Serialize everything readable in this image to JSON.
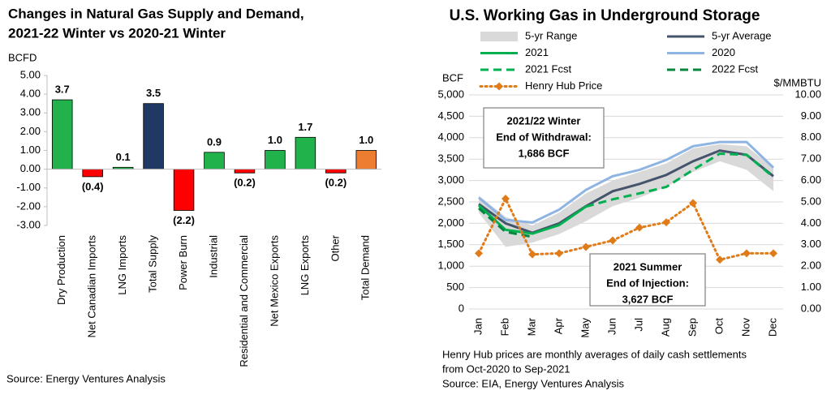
{
  "chart_data": [
    {
      "type": "bar",
      "title": [
        "Changes in Natural Gas Supply and Demand,",
        "2021-22 Winter vs 2020-21 Winter"
      ],
      "y_label": "BCFD",
      "categories": [
        "Dry Production",
        "Net Canadian Imports",
        "LNG Imports",
        "Total Supply",
        "Power Burn",
        "Industrial",
        "Residential and Commercial",
        "Net Mexico Exports",
        "LNG Exports",
        "Other",
        "Total Demand"
      ],
      "values": [
        3.7,
        -0.4,
        0.1,
        3.5,
        -2.2,
        0.9,
        -0.2,
        1.0,
        1.7,
        -0.2,
        1.0
      ],
      "value_labels": [
        "3.7",
        "(0.4)",
        "0.1",
        "3.5",
        "(2.2)",
        "0.9",
        "(0.2)",
        "1.0",
        "1.7",
        "(0.2)",
        "1.0"
      ],
      "colors": [
        "#22b24c",
        "#ff0000",
        "#22b24c",
        "#1f3864",
        "#ff0000",
        "#22b24c",
        "#ff0000",
        "#22b24c",
        "#22b24c",
        "#ff0000",
        "#ed7d31"
      ],
      "negative_label_color": "#ff0000",
      "ylim": [
        -3,
        5
      ],
      "yticks": [
        {
          "value": 5,
          "label": "5.00"
        },
        {
          "value": 4,
          "label": "4.00"
        },
        {
          "value": 3,
          "label": "3.00"
        },
        {
          "value": 2,
          "label": "2.00"
        },
        {
          "value": 1,
          "label": "1.00"
        },
        {
          "value": 0,
          "label": "0.00"
        },
        {
          "value": -1,
          "label": "-1.00"
        },
        {
          "value": -2,
          "label": "-2.00"
        },
        {
          "value": -3,
          "label": "-3.00"
        }
      ],
      "grid": false,
      "source": "Source: Energy Ventures Analysis"
    },
    {
      "type": "line",
      "title": "U.S. Working Gas in Underground Storage",
      "y_label": "BCF",
      "y2_label": "$/MMBTU",
      "categories": [
        "Jan",
        "Feb",
        "Mar",
        "Apr",
        "May",
        "Jun",
        "Jul",
        "Aug",
        "Sep",
        "Oct",
        "Nov",
        "Dec"
      ],
      "series": [
        {
          "name": "5-yr Range",
          "color": "#d9d9d9",
          "kind": "range",
          "low": [
            2250,
            1450,
            1550,
            1750,
            2050,
            2400,
            2600,
            2850,
            3200,
            3450,
            3250,
            2750
          ],
          "high": [
            2650,
            2150,
            1950,
            2250,
            2700,
            3000,
            3200,
            3400,
            3750,
            3850,
            3800,
            3300
          ]
        },
        {
          "name": "5-yr Average",
          "color": "#44546a",
          "dash": "solid",
          "values": [
            2450,
            2000,
            1780,
            2000,
            2400,
            2750,
            2920,
            3130,
            3450,
            3700,
            3600,
            3100
          ]
        },
        {
          "name": "2021",
          "color": "#00b050",
          "dash": "solid",
          "values": [
            2420,
            1850,
            1760,
            1960,
            2390,
            null,
            null,
            null,
            null,
            null,
            null,
            null
          ]
        },
        {
          "name": "2020",
          "color": "#8eb4e3",
          "dash": "solid",
          "values": [
            2600,
            2080,
            2020,
            2320,
            2780,
            3100,
            3250,
            3480,
            3800,
            3900,
            3900,
            3300
          ]
        },
        {
          "name": "2021 Fcst",
          "color": "#00b050",
          "dash": "dashed",
          "values": [
            null,
            null,
            null,
            null,
            2390,
            2560,
            2700,
            2850,
            3250,
            3627,
            3600,
            3080
          ]
        },
        {
          "name": "2022 Fcst",
          "color": "#00863d",
          "dash": "dashed",
          "values": [
            2350,
            1800,
            1686,
            null,
            null,
            null,
            null,
            null,
            null,
            null,
            null,
            null
          ]
        },
        {
          "name": "Henry Hub Price",
          "color": "#e07b1a",
          "dash": "dotted",
          "marker": "diamond",
          "axis": "y2",
          "values": [
            2.6,
            5.15,
            2.55,
            2.6,
            2.9,
            3.2,
            3.8,
            4.05,
            4.95,
            2.3,
            2.6,
            2.6
          ]
        }
      ],
      "ylim": [
        0,
        5000
      ],
      "yticks": [
        {
          "value": 5000,
          "label": "5,000"
        },
        {
          "value": 4500,
          "label": "4,500"
        },
        {
          "value": 4000,
          "label": "4,000"
        },
        {
          "value": 3500,
          "label": "3,500"
        },
        {
          "value": 3000,
          "label": "3,000"
        },
        {
          "value": 2500,
          "label": "2,500"
        },
        {
          "value": 2000,
          "label": "2,000"
        },
        {
          "value": 1500,
          "label": "1,500"
        },
        {
          "value": 1000,
          "label": "1,000"
        },
        500,
        0
      ],
      "y2lim": [
        0,
        10
      ],
      "y2ticks": [
        {
          "value": 10,
          "label": "10.00"
        },
        {
          "value": 9,
          "label": "9.00"
        },
        {
          "value": 8,
          "label": "8.00"
        },
        {
          "value": 7,
          "label": "7.00"
        },
        {
          "value": 6,
          "label": "6.00"
        },
        {
          "value": 5,
          "label": "5.00"
        },
        {
          "value": 4,
          "label": "4.00"
        },
        {
          "value": 3,
          "label": "3.00"
        },
        {
          "value": 2,
          "label": "2.00"
        },
        {
          "value": 1,
          "label": "1.00"
        },
        {
          "value": 0,
          "label": "0.00"
        }
      ],
      "grid": true,
      "annotations": [
        {
          "lines": [
            "2021/22 Winter",
            "End of Withdrawal:",
            "1,686 BCF"
          ]
        },
        {
          "lines": [
            "2021 Summer",
            "End of Injection:",
            "3,627 BCF"
          ]
        }
      ],
      "notes": [
        "Henry Hub prices are monthly averages of daily cash settlements",
        "from Oct-2020 to Sep-2021",
        "Source: EIA, Energy Ventures Analysis"
      ]
    }
  ]
}
